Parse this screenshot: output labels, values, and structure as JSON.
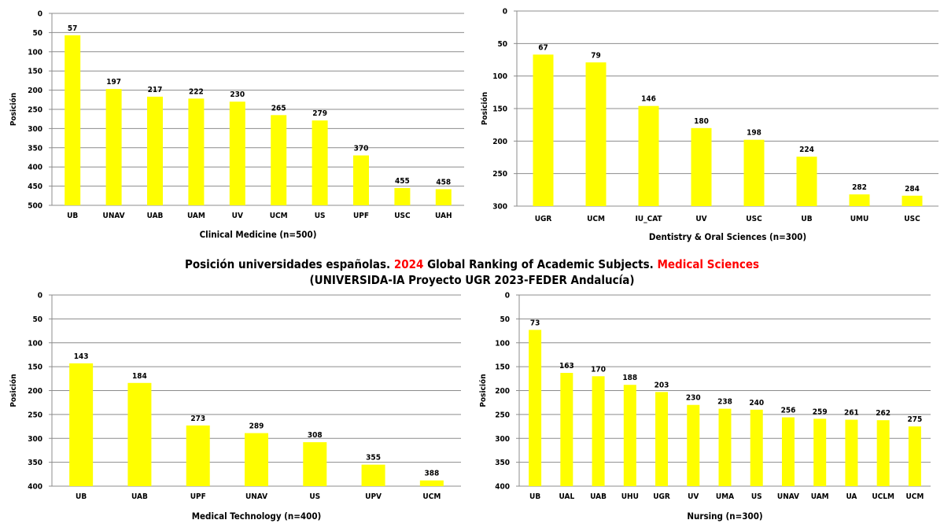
{
  "title": {
    "part1": "Posición universidades españolas.",
    "year": "2024",
    "part2": "Global Ranking of Academic Subjects.",
    "field": "Medical Sciences",
    "subtitle": "(UNIVERSIDA-IA Proyecto UGR 2023-FEDER Andalucía)"
  },
  "colors": {
    "bar": "#ffff00",
    "highlight": "#ff0000",
    "grid": "#8c8c8c"
  },
  "chart_data": [
    {
      "type": "bar",
      "xlabel": "Clinical Medicine (n=500)",
      "ylabel": "Posición",
      "ylim": [
        0,
        500
      ],
      "y_inverted": true,
      "ytick_step": 50,
      "grid": true,
      "categories": [
        "UB",
        "UNAV",
        "UAB",
        "UAM",
        "UV",
        "UCM",
        "US",
        "UPF",
        "USC",
        "UAH"
      ],
      "values": [
        57,
        197,
        217,
        222,
        230,
        265,
        279,
        370,
        455,
        458
      ]
    },
    {
      "type": "bar",
      "xlabel": "Dentistry & Oral Sciences (n=300)",
      "ylabel": "Posición",
      "ylim": [
        0,
        300
      ],
      "y_inverted": true,
      "ytick_step": 50,
      "grid": true,
      "categories": [
        "UGR",
        "UCM",
        "IU_CAT",
        "UV",
        "USC",
        "UB",
        "UMU",
        "USC"
      ],
      "values": [
        67,
        79,
        146,
        180,
        198,
        224,
        282,
        284
      ]
    },
    {
      "type": "bar",
      "xlabel": "Medical Technology (n=400)",
      "ylabel": "Posición",
      "ylim": [
        0,
        400
      ],
      "y_inverted": true,
      "ytick_step": 50,
      "grid": true,
      "categories": [
        "UB",
        "UAB",
        "UPF",
        "UNAV",
        "US",
        "UPV",
        "UCM"
      ],
      "values": [
        143,
        184,
        273,
        289,
        308,
        355,
        388
      ]
    },
    {
      "type": "bar",
      "xlabel": "Nursing (n=300)",
      "ylabel": "Posición",
      "ylim": [
        0,
        400
      ],
      "y_inverted": true,
      "ytick_step": 50,
      "grid": true,
      "categories": [
        "UB",
        "UAL",
        "UAB",
        "UHU",
        "UGR",
        "UV",
        "UMA",
        "US",
        "UNAV",
        "UAM",
        "UA",
        "UCLM",
        "UCM"
      ],
      "values": [
        73,
        163,
        170,
        188,
        203,
        230,
        238,
        240,
        256,
        259,
        261,
        262,
        275
      ]
    }
  ]
}
